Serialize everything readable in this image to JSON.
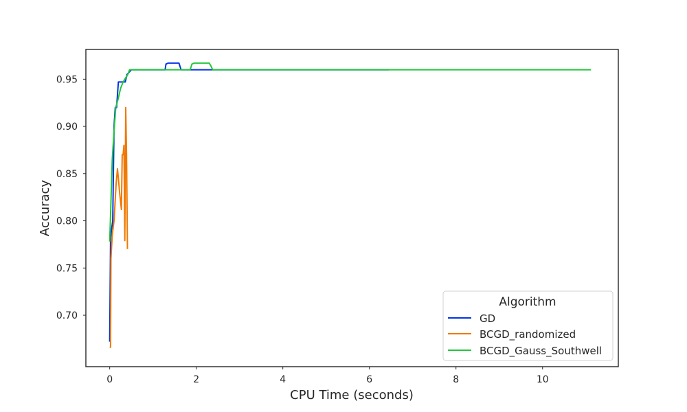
{
  "chart_data": {
    "type": "line",
    "title": "",
    "xlabel": "CPU Time (seconds)",
    "ylabel": "Accuracy",
    "xlim": [
      -0.55,
      11.75
    ],
    "ylim": [
      0.6455,
      0.9815
    ],
    "xticks": [
      0,
      2,
      4,
      6,
      8,
      10
    ],
    "yticks": [
      0.7,
      0.75,
      0.8,
      0.85,
      0.9,
      0.95
    ],
    "grid": false,
    "legend": {
      "title": "Algorithm",
      "placement": "bottom-right"
    },
    "series": [
      {
        "name": "GD",
        "color": "#0033e6",
        "points": [
          [
            0.0,
            0.672
          ],
          [
            0.02,
            0.78
          ],
          [
            0.04,
            0.79
          ],
          [
            0.07,
            0.8
          ],
          [
            0.1,
            0.9
          ],
          [
            0.13,
            0.92
          ],
          [
            0.16,
            0.92
          ],
          [
            0.2,
            0.947
          ],
          [
            0.26,
            0.947
          ],
          [
            0.33,
            0.947
          ],
          [
            0.36,
            0.947
          ],
          [
            0.4,
            0.955
          ],
          [
            0.5,
            0.96
          ],
          [
            0.8,
            0.96
          ],
          [
            1.2,
            0.96
          ],
          [
            1.28,
            0.96
          ],
          [
            1.3,
            0.966
          ],
          [
            1.35,
            0.967
          ],
          [
            1.6,
            0.967
          ],
          [
            1.65,
            0.96
          ],
          [
            2.0,
            0.96
          ],
          [
            3.0,
            0.96
          ],
          [
            4.0,
            0.96
          ],
          [
            5.0,
            0.96
          ],
          [
            6.0,
            0.96
          ],
          [
            6.45,
            0.96
          ]
        ]
      },
      {
        "name": "BCGD_randomized",
        "color": "#f07800",
        "points": [
          [
            0.0,
            0.666
          ],
          [
            0.02,
            0.666
          ],
          [
            0.03,
            0.76
          ],
          [
            0.06,
            0.785
          ],
          [
            0.1,
            0.8
          ],
          [
            0.15,
            0.84
          ],
          [
            0.18,
            0.855
          ],
          [
            0.2,
            0.845
          ],
          [
            0.23,
            0.83
          ],
          [
            0.27,
            0.812
          ],
          [
            0.29,
            0.87
          ],
          [
            0.31,
            0.87
          ],
          [
            0.33,
            0.88
          ],
          [
            0.35,
            0.779
          ],
          [
            0.37,
            0.92
          ],
          [
            0.39,
            0.87
          ],
          [
            0.41,
            0.77
          ]
        ]
      },
      {
        "name": "BCGD_Gauss_Southwell",
        "color": "#22c63a",
        "points": [
          [
            0.0,
            0.778
          ],
          [
            0.03,
            0.82
          ],
          [
            0.06,
            0.865
          ],
          [
            0.1,
            0.895
          ],
          [
            0.14,
            0.92
          ],
          [
            0.2,
            0.93
          ],
          [
            0.25,
            0.94
          ],
          [
            0.3,
            0.946
          ],
          [
            0.35,
            0.95
          ],
          [
            0.42,
            0.955
          ],
          [
            0.46,
            0.96
          ],
          [
            0.8,
            0.96
          ],
          [
            1.2,
            0.96
          ],
          [
            1.6,
            0.96
          ],
          [
            1.86,
            0.96
          ],
          [
            1.9,
            0.966
          ],
          [
            1.95,
            0.967
          ],
          [
            2.3,
            0.967
          ],
          [
            2.35,
            0.963
          ],
          [
            2.38,
            0.96
          ],
          [
            4.0,
            0.96
          ],
          [
            6.0,
            0.96
          ],
          [
            8.0,
            0.96
          ],
          [
            10.0,
            0.96
          ],
          [
            11.12,
            0.96
          ]
        ]
      }
    ]
  }
}
